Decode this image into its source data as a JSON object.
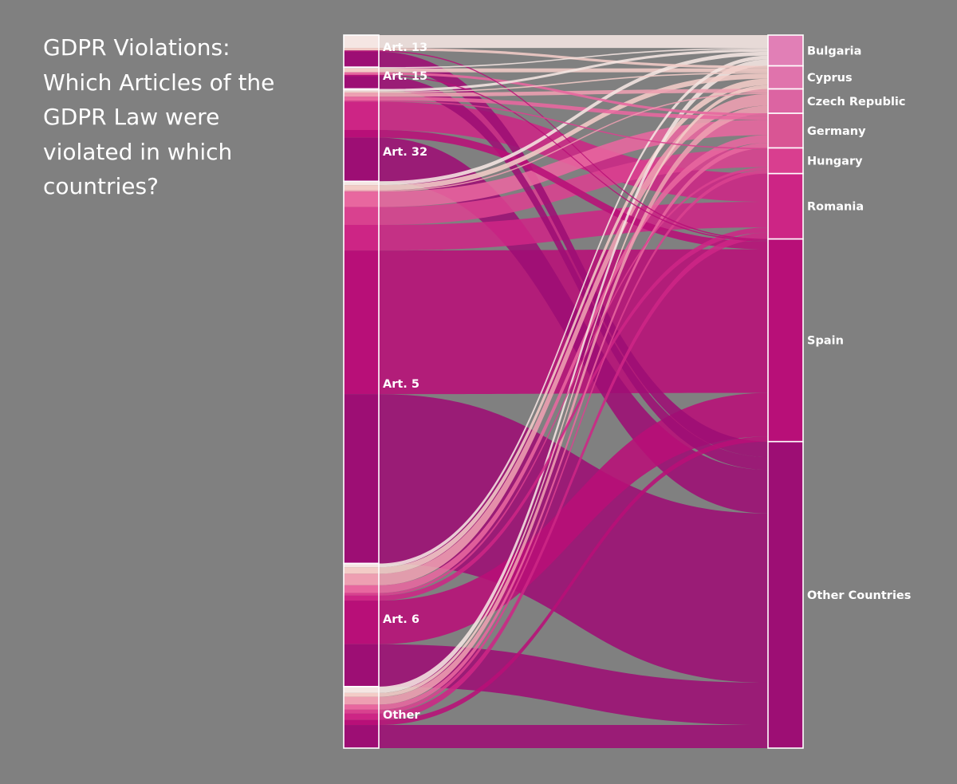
{
  "title_lines": [
    "GDPR Violations:",
    "Which Articles of the",
    "GDPR Law were",
    "violated in which",
    "countries?"
  ],
  "chart_data": {
    "type": "sankey",
    "sources": [
      "Art. 13",
      "Art. 15",
      "Art. 32",
      "Art. 5",
      "Art. 6",
      "Other"
    ],
    "targets": [
      "Bulgaria",
      "Cyprus",
      "Czech Republic",
      "Germany",
      "Hungary",
      "Romania",
      "Spain",
      "Other Countries"
    ],
    "flows": [
      [
        1,
        0.2,
        0,
        0,
        0,
        0,
        0.1,
        1.2
      ],
      [
        0.1,
        0.3,
        0,
        0.2,
        0,
        0,
        0.1,
        1
      ],
      [
        0.2,
        0.1,
        0.3,
        0.3,
        0.1,
        2.2,
        0.6,
        3.4
      ],
      [
        0.3,
        0.4,
        0.1,
        1.2,
        1.4,
        2,
        11.2,
        13.2
      ],
      [
        0.3,
        0.5,
        0.9,
        0.6,
        0.2,
        0.4,
        3.4,
        3.3
      ],
      [
        0.5,
        0.3,
        0.6,
        0.4,
        0.3,
        0.5,
        0.4,
        1.8
      ]
    ],
    "colors": {
      "background": "#808080",
      "targets": [
        "#e17fb6",
        "#e073ac",
        "#dc64a2",
        "#d95594",
        "#d93e8f",
        "#cd2585",
        "#b80f78",
        "#9d0e74"
      ],
      "segments": [
        "#f5e6e3",
        "#f3ccc7",
        "#ee9fb2",
        "#e8679f",
        "#d9418f",
        "#cd2585",
        "#b80f78",
        "#9d0e74",
        "#7a0e73"
      ]
    }
  }
}
